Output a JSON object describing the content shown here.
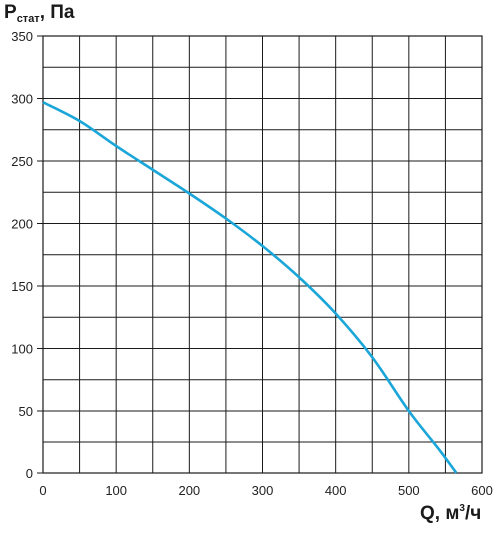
{
  "chart_data": {
    "type": "line",
    "ylabel": {
      "main": "P",
      "sub": "стат",
      "tail": ", Па"
    },
    "xlabel": {
      "main": "Q, м",
      "sup": "3",
      "tail": "/ч"
    },
    "xlim": [
      0,
      600
    ],
    "ylim": [
      0,
      350
    ],
    "x_ticks": [
      0,
      100,
      200,
      300,
      400,
      500,
      600
    ],
    "y_ticks": [
      0,
      50,
      100,
      150,
      200,
      250,
      300,
      350
    ],
    "grid": true,
    "line_color": "#1aa6d8",
    "series": [
      {
        "x": [
          0,
          50,
          100,
          150,
          200,
          250,
          300,
          350,
          400,
          450,
          500,
          540,
          565
        ],
        "y": [
          297,
          282,
          262,
          243,
          224,
          204,
          182,
          157,
          128,
          93,
          50,
          20,
          0
        ]
      }
    ]
  }
}
